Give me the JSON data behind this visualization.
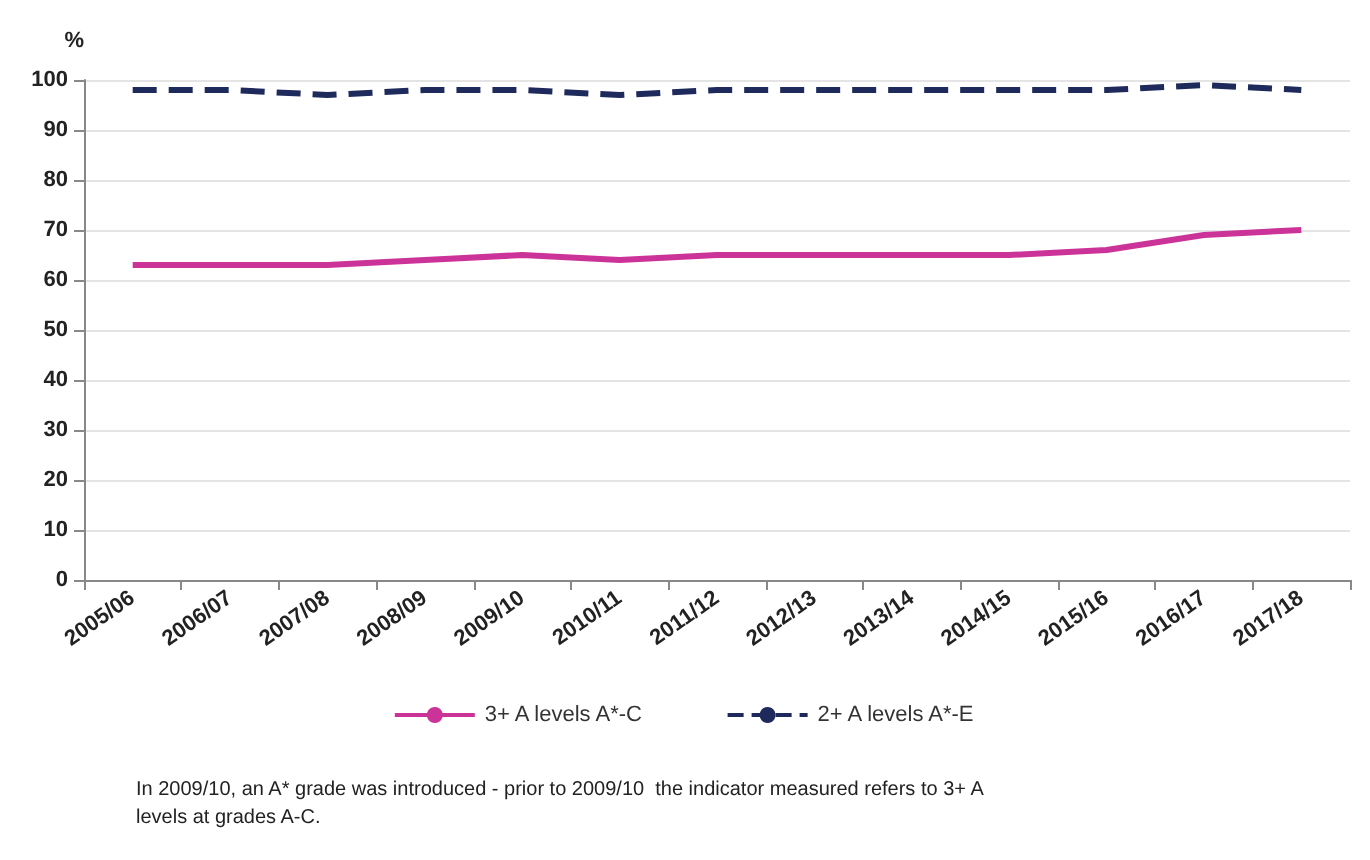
{
  "chart_data": {
    "type": "line",
    "ylabel": "%",
    "categories": [
      "2005/06",
      "2006/07",
      "2007/08",
      "2008/09",
      "2009/10",
      "2010/11",
      "2011/12",
      "2012/13",
      "2013/14",
      "2014/15",
      "2015/16",
      "2016/17",
      "2017/18"
    ],
    "series": [
      {
        "name": "3+ A levels A*-C",
        "color": "#cc3399",
        "line_style": "solid",
        "values": [
          63,
          63,
          63,
          64,
          65,
          64,
          65,
          65,
          65,
          65,
          66,
          69,
          70
        ]
      },
      {
        "name": "2+ A levels A*-E",
        "color": "#1f2a5c",
        "line_style": "dashed",
        "values": [
          98,
          98,
          97,
          98,
          98,
          97,
          98,
          98,
          98,
          98,
          98,
          99,
          98
        ]
      }
    ],
    "ylim": [
      0,
      100
    ],
    "yticks": [
      0,
      10,
      20,
      30,
      40,
      50,
      60,
      70,
      80,
      90,
      100
    ],
    "grid": "y",
    "legend": "bottom",
    "marker": "none",
    "annotations": [
      "In 2009/10, an A* grade was introduced - prior to 2009/10  the indicator measured refers to 3+ A levels at grades A-C."
    ]
  }
}
